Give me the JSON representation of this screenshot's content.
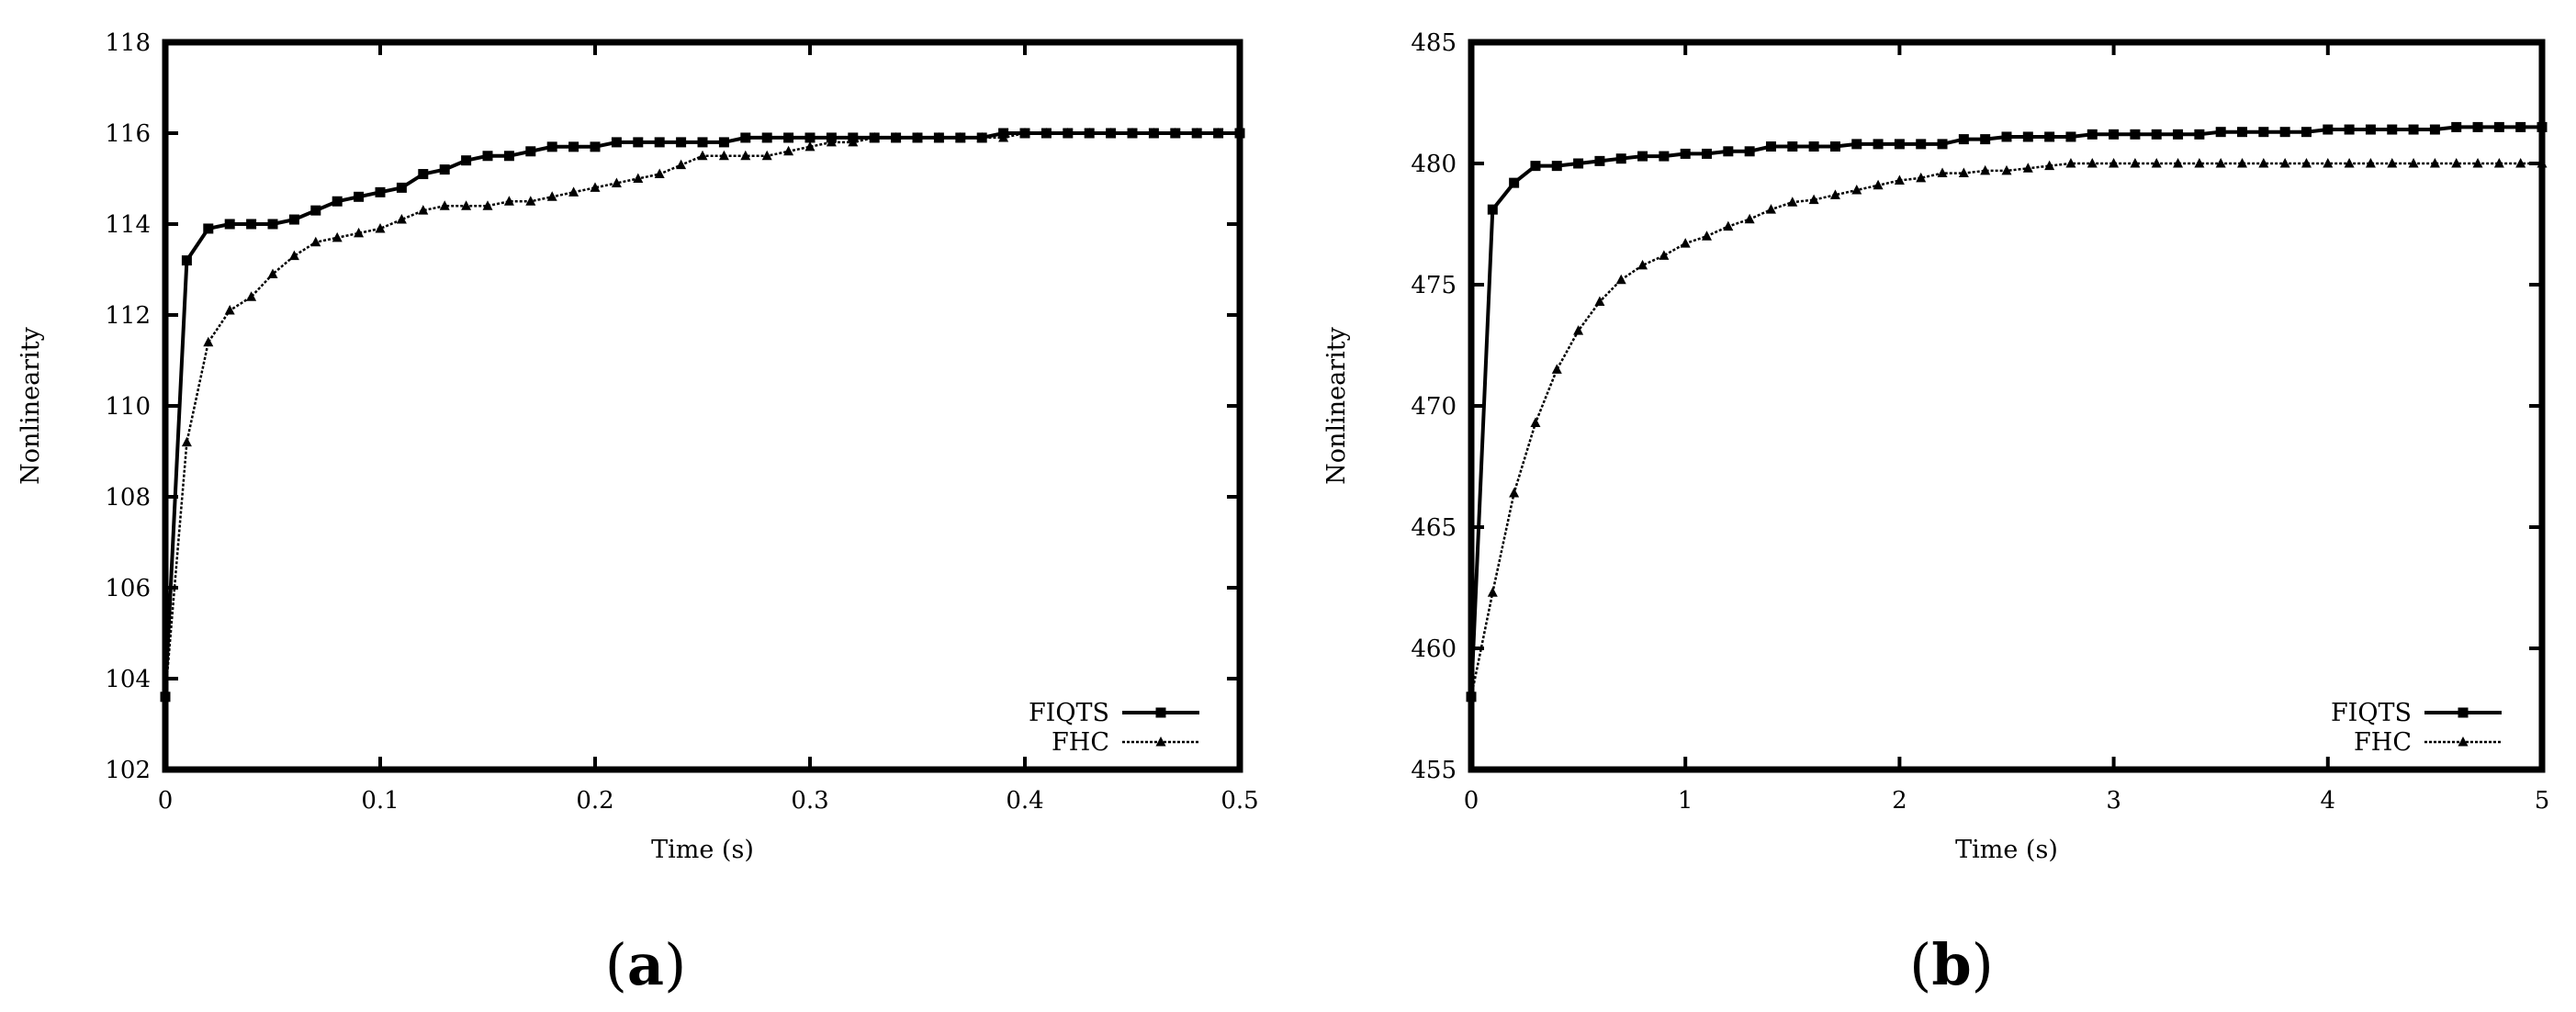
{
  "panels": [
    {
      "label_open": "(",
      "label_letter": "a",
      "label_close": ")"
    },
    {
      "label_open": "(",
      "label_letter": "b",
      "label_close": ")"
    }
  ],
  "chart_data": [
    {
      "type": "line",
      "title": "",
      "xlabel": "Time (s)",
      "ylabel": "Nonlinearity",
      "xlim": [
        0,
        0.5
      ],
      "ylim": [
        102,
        118
      ],
      "xticks": [
        0,
        0.1,
        0.2,
        0.3,
        0.4,
        0.5
      ],
      "xtick_labels": [
        "0",
        "0.1",
        "0.2",
        "0.3",
        "0.4",
        "0.5"
      ],
      "yticks": [
        102,
        104,
        106,
        108,
        110,
        112,
        114,
        116,
        118
      ],
      "ytick_labels": [
        "102",
        "104",
        "106",
        "108",
        "110",
        "112",
        "114",
        "116",
        "118"
      ],
      "grid": false,
      "legend_position": "bottom-right",
      "series": [
        {
          "name": "FIQTS",
          "marker": "square",
          "style": "solid",
          "color": "#000000",
          "x": [
            0,
            0.01,
            0.02,
            0.03,
            0.04,
            0.05,
            0.06,
            0.07,
            0.08,
            0.09,
            0.1,
            0.11,
            0.12,
            0.13,
            0.14,
            0.15,
            0.16,
            0.17,
            0.18,
            0.19,
            0.2,
            0.21,
            0.22,
            0.23,
            0.24,
            0.25,
            0.26,
            0.27,
            0.28,
            0.29,
            0.3,
            0.31,
            0.32,
            0.33,
            0.34,
            0.35,
            0.36,
            0.37,
            0.38,
            0.39,
            0.4,
            0.41,
            0.42,
            0.43,
            0.44,
            0.45,
            0.46,
            0.47,
            0.48,
            0.49,
            0.5
          ],
          "y": [
            103.6,
            113.2,
            113.9,
            114.0,
            114.0,
            114.0,
            114.1,
            114.3,
            114.5,
            114.6,
            114.7,
            114.8,
            115.1,
            115.2,
            115.4,
            115.5,
            115.5,
            115.6,
            115.7,
            115.7,
            115.7,
            115.8,
            115.8,
            115.8,
            115.8,
            115.8,
            115.8,
            115.9,
            115.9,
            115.9,
            115.9,
            115.9,
            115.9,
            115.9,
            115.9,
            115.9,
            115.9,
            115.9,
            115.9,
            116.0,
            116.0,
            116.0,
            116.0,
            116.0,
            116.0,
            116.0,
            116.0,
            116.0,
            116.0,
            116.0,
            116.0
          ]
        },
        {
          "name": "FHC",
          "marker": "triangle",
          "style": "dotted",
          "color": "#000000",
          "x": [
            0,
            0.01,
            0.02,
            0.03,
            0.04,
            0.05,
            0.06,
            0.07,
            0.08,
            0.09,
            0.1,
            0.11,
            0.12,
            0.13,
            0.14,
            0.15,
            0.16,
            0.17,
            0.18,
            0.19,
            0.2,
            0.21,
            0.22,
            0.23,
            0.24,
            0.25,
            0.26,
            0.27,
            0.28,
            0.29,
            0.3,
            0.31,
            0.32,
            0.33,
            0.34,
            0.35,
            0.36,
            0.37,
            0.38,
            0.39,
            0.4,
            0.41,
            0.42,
            0.43,
            0.44,
            0.45,
            0.46,
            0.47,
            0.48,
            0.49,
            0.5
          ],
          "y": [
            103.6,
            109.2,
            111.4,
            112.1,
            112.4,
            112.9,
            113.3,
            113.6,
            113.7,
            113.8,
            113.9,
            114.1,
            114.3,
            114.4,
            114.4,
            114.4,
            114.5,
            114.5,
            114.6,
            114.7,
            114.8,
            114.9,
            115.0,
            115.1,
            115.3,
            115.5,
            115.5,
            115.5,
            115.5,
            115.6,
            115.7,
            115.8,
            115.8,
            115.9,
            115.9,
            115.9,
            115.9,
            115.9,
            115.9,
            115.9,
            116.0,
            116.0,
            116.0,
            116.0,
            116.0,
            116.0,
            116.0,
            116.0,
            116.0,
            116.0,
            116.0
          ]
        }
      ]
    },
    {
      "type": "line",
      "title": "",
      "xlabel": "Time (s)",
      "ylabel": "Nonlinearity",
      "xlim": [
        0,
        5
      ],
      "ylim": [
        455,
        485
      ],
      "xticks": [
        0,
        1,
        2,
        3,
        4,
        5
      ],
      "xtick_labels": [
        "0",
        "1",
        "2",
        "3",
        "4",
        "5"
      ],
      "yticks": [
        455,
        460,
        465,
        470,
        475,
        480,
        485
      ],
      "ytick_labels": [
        "455",
        "460",
        "465",
        "470",
        "475",
        "480",
        "485"
      ],
      "grid": false,
      "legend_position": "bottom-right",
      "series": [
        {
          "name": "FIQTS",
          "marker": "square",
          "style": "solid",
          "color": "#000000",
          "x": [
            0,
            0.1,
            0.2,
            0.3,
            0.4,
            0.5,
            0.6,
            0.7,
            0.8,
            0.9,
            1.0,
            1.1,
            1.2,
            1.3,
            1.4,
            1.5,
            1.6,
            1.7,
            1.8,
            1.9,
            2.0,
            2.1,
            2.2,
            2.3,
            2.4,
            2.5,
            2.6,
            2.7,
            2.8,
            2.9,
            3.0,
            3.1,
            3.2,
            3.3,
            3.4,
            3.5,
            3.6,
            3.7,
            3.8,
            3.9,
            4.0,
            4.1,
            4.2,
            4.3,
            4.4,
            4.5,
            4.6,
            4.7,
            4.8,
            4.9,
            5.0
          ],
          "y": [
            458,
            478.1,
            479.2,
            479.9,
            479.9,
            480.0,
            480.1,
            480.2,
            480.3,
            480.3,
            480.4,
            480.4,
            480.5,
            480.5,
            480.7,
            480.7,
            480.7,
            480.7,
            480.8,
            480.8,
            480.8,
            480.8,
            480.8,
            481.0,
            481.0,
            481.1,
            481.1,
            481.1,
            481.1,
            481.2,
            481.2,
            481.2,
            481.2,
            481.2,
            481.2,
            481.3,
            481.3,
            481.3,
            481.3,
            481.3,
            481.4,
            481.4,
            481.4,
            481.4,
            481.4,
            481.4,
            481.5,
            481.5,
            481.5,
            481.5,
            481.5
          ]
        },
        {
          "name": "FHC",
          "marker": "triangle",
          "style": "dotted",
          "color": "#000000",
          "x": [
            0,
            0.1,
            0.2,
            0.3,
            0.4,
            0.5,
            0.6,
            0.7,
            0.8,
            0.9,
            1.0,
            1.1,
            1.2,
            1.3,
            1.4,
            1.5,
            1.6,
            1.7,
            1.8,
            1.9,
            2.0,
            2.1,
            2.2,
            2.3,
            2.4,
            2.5,
            2.6,
            2.7,
            2.8,
            2.9,
            3.0,
            3.1,
            3.2,
            3.3,
            3.4,
            3.5,
            3.6,
            3.7,
            3.8,
            3.9,
            4.0,
            4.1,
            4.2,
            4.3,
            4.4,
            4.5,
            4.6,
            4.7,
            4.8,
            4.9,
            5.0
          ],
          "y": [
            458,
            462.3,
            466.4,
            469.3,
            471.5,
            473.1,
            474.3,
            475.2,
            475.8,
            476.2,
            476.7,
            477.0,
            477.4,
            477.7,
            478.1,
            478.4,
            478.5,
            478.7,
            478.9,
            479.1,
            479.3,
            479.4,
            479.6,
            479.6,
            479.7,
            479.7,
            479.8,
            479.9,
            480.0,
            480.0,
            480.0,
            480.0,
            480.0,
            480.0,
            480.0,
            480.0,
            480.0,
            480.0,
            480.0,
            480.0,
            480.0,
            480.0,
            480.0,
            480.0,
            480.0,
            480.0,
            480.0,
            480.0,
            480.0,
            480.0,
            480.0
          ]
        }
      ]
    }
  ]
}
